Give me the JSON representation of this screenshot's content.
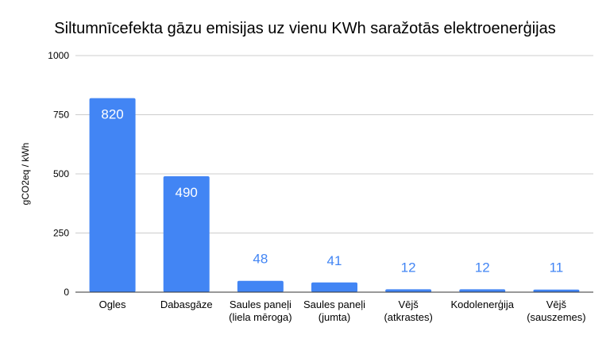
{
  "chart_data": {
    "type": "bar",
    "title": "Siltumnīcefekta gāzu emisijas uz vienu KWh saražotās elektroenerģijas",
    "xlabel": "",
    "ylabel": "gCO2eq / kWh",
    "ylim": [
      0,
      1000
    ],
    "yticks": [
      0,
      250,
      500,
      750,
      1000
    ],
    "grid": true,
    "legend": "none",
    "categories": [
      [
        "Ogles"
      ],
      [
        "Dabasgāze"
      ],
      [
        "Saules paneļi",
        "(liela mēroga)"
      ],
      [
        "Saules paneļi",
        "(jumta)"
      ],
      [
        "Vējš",
        "(atkrastes)"
      ],
      [
        "Kodolenerģija"
      ],
      [
        "Vējš",
        "(sauszemes)"
      ]
    ],
    "values": [
      820,
      490,
      48,
      41,
      12,
      12,
      11
    ],
    "colors": {
      "bar": "#4285f4",
      "label_inside": "#ffffff",
      "label_outside": "#4285f4",
      "grid": "#cccccc",
      "baseline": "#333333"
    }
  }
}
